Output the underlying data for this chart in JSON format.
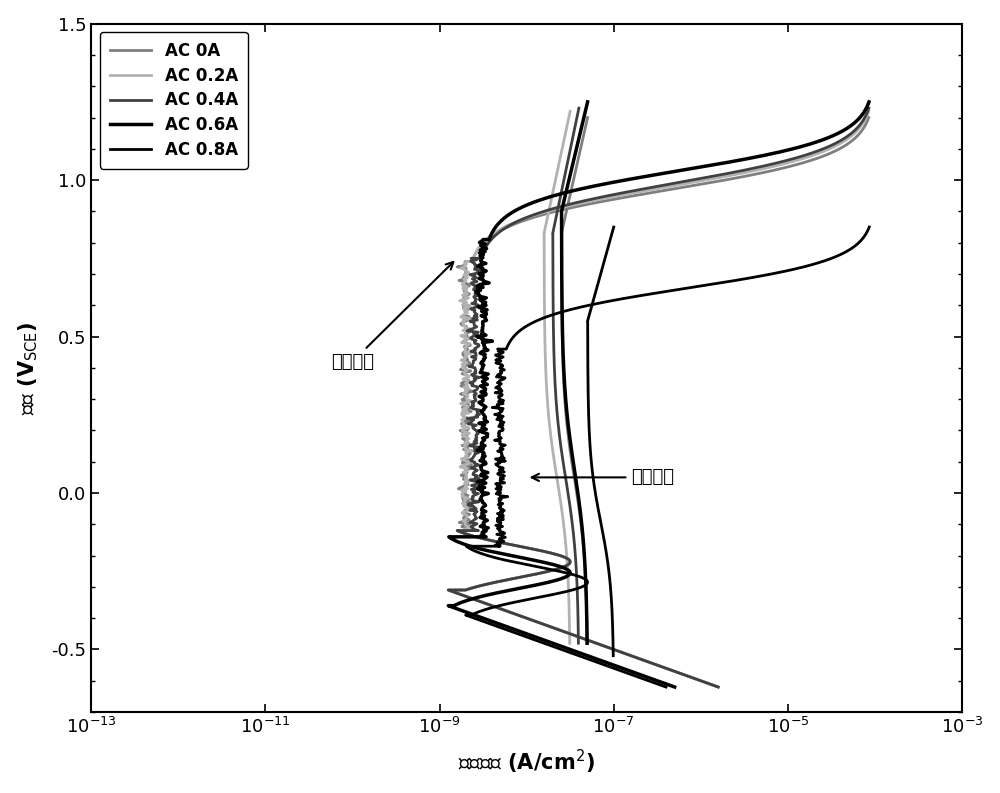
{
  "ylabel_display": "电位 (V$_{\\mathrm{SCE}}$)",
  "xlabel_display": "电流密度 (A/cm$^2$)",
  "xlim_log": [
    -13,
    -3
  ],
  "ylim": [
    -0.7,
    1.5
  ],
  "yticks": [
    -0.5,
    0.0,
    0.5,
    1.0,
    1.5
  ],
  "legend_labels": [
    "AC 0A",
    "AC 0.2A",
    "AC 0.4A",
    "AC 0.6A",
    "AC 0.8A"
  ],
  "line_colors": [
    "#7f7f7f",
    "#b2b2b2",
    "#404040",
    "#000000",
    "#000000"
  ],
  "line_widths": [
    2.0,
    2.0,
    2.0,
    2.5,
    2.0
  ],
  "annotation1_text": "回扫曲线",
  "annotation2_text": "正扫曲线",
  "background_color": "#ffffff",
  "fig_width": 10.0,
  "fig_height": 7.93
}
